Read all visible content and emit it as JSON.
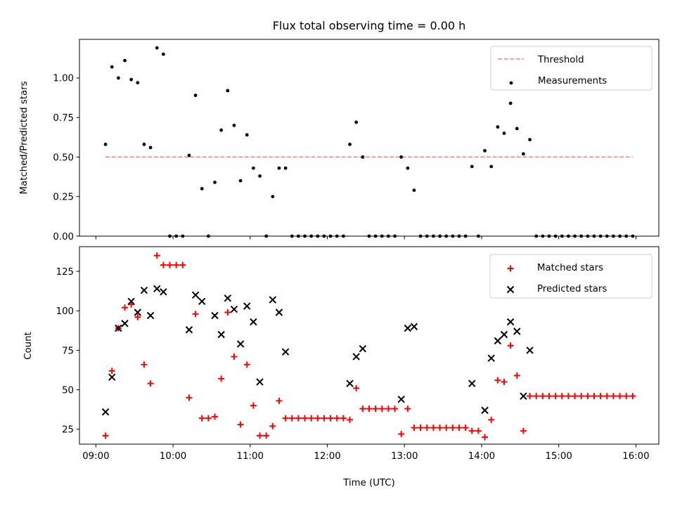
{
  "chart_data": [
    {
      "type": "scatter",
      "title": "Flux total observing time = 0.00 h",
      "xlabel": "",
      "ylabel": "Matched/Predicted stars",
      "ylim": [
        0,
        1.244
      ],
      "xlim_hours": [
        8.787,
        16.297
      ],
      "yticks": [
        "0.00",
        "0.25",
        "0.50",
        "0.75",
        "1.00"
      ],
      "ytick_values": [
        0,
        0.25,
        0.5,
        0.75,
        1.0
      ],
      "legend_position": "top-right",
      "legend": [
        "Threshold",
        "Measurements"
      ],
      "threshold": {
        "name": "Threshold",
        "value": 0.5,
        "color": "#ff7f7f",
        "x_start_index": 0,
        "x_end_index": 82
      },
      "series": [
        {
          "name": "Measurements",
          "color": "#000000",
          "values": [
            0.58,
            1.07,
            1.0,
            1.11,
            0.99,
            0.97,
            0.58,
            0.56,
            1.19,
            1.15,
            0,
            0,
            0,
            0.51,
            0.89,
            0.3,
            0,
            0.34,
            0.67,
            0.92,
            0.7,
            0.35,
            0.64,
            0.43,
            0.38,
            0,
            0.25,
            0.43,
            0.43,
            0,
            0,
            0,
            0,
            0,
            0,
            0,
            0,
            0,
            0.58,
            0.72,
            0.5,
            0,
            0,
            0,
            0,
            0,
            0.5,
            0.43,
            0.29,
            0,
            0,
            0,
            0,
            0,
            0,
            0,
            0,
            0.44,
            0,
            0.54,
            0.44,
            0.69,
            0.65,
            0.84,
            0.68,
            0.52,
            0.61,
            0,
            0,
            0,
            0,
            0,
            0,
            0,
            0,
            0,
            0,
            0,
            0,
            0,
            0,
            0,
            0
          ]
        }
      ]
    },
    {
      "type": "scatter",
      "title": "",
      "xlabel": "Time (UTC)",
      "ylabel": "Count",
      "ylim": [
        15.6,
        140.6
      ],
      "xlim_hours": [
        8.787,
        16.297
      ],
      "yticks": [
        "25",
        "50",
        "75",
        "100",
        "125"
      ],
      "ytick_values": [
        25,
        50,
        75,
        100,
        125
      ],
      "xticks": [
        "09:00",
        "10:00",
        "11:00",
        "12:00",
        "13:00",
        "14:00",
        "15:00",
        "16:00"
      ],
      "xtick_hours": [
        9,
        10,
        11,
        12,
        13,
        14,
        15,
        16
      ],
      "legend_position": "top-right",
      "legend": [
        "Matched stars",
        "Predicted stars"
      ],
      "series": [
        {
          "name": "Matched stars",
          "color": "#ff0000",
          "marker": "+",
          "values": [
            21,
            62,
            89,
            102,
            104,
            96,
            66,
            54,
            135,
            129,
            129,
            129,
            129,
            45,
            98,
            32,
            32,
            33,
            57,
            99,
            71,
            28,
            66,
            40,
            21,
            21,
            27,
            43,
            32,
            32,
            32,
            32,
            32,
            32,
            32,
            32,
            32,
            32,
            31,
            51,
            38,
            38,
            38,
            38,
            38,
            38,
            22,
            38,
            26,
            26,
            26,
            26,
            26,
            26,
            26,
            26,
            26,
            24,
            24,
            20,
            31,
            56,
            55,
            78,
            59,
            24,
            46,
            46,
            46,
            46,
            46,
            46,
            46,
            46,
            46,
            46,
            46,
            46,
            46,
            46,
            46,
            46,
            46
          ]
        },
        {
          "name": "Predicted stars",
          "color": "#000000",
          "marker": "x",
          "values": [
            36,
            58,
            89,
            92,
            106,
            99,
            113,
            97,
            114,
            112,
            null,
            null,
            null,
            88,
            110,
            106,
            null,
            97,
            85,
            108,
            101,
            79,
            103,
            93,
            55,
            null,
            107,
            99,
            74,
            null,
            null,
            null,
            null,
            null,
            null,
            null,
            null,
            null,
            54,
            71,
            76,
            null,
            null,
            null,
            null,
            null,
            44,
            89,
            90,
            null,
            null,
            null,
            null,
            null,
            null,
            null,
            null,
            54,
            null,
            37,
            70,
            81,
            85,
            93,
            87,
            46,
            75,
            null,
            null,
            null,
            null,
            null,
            null,
            null,
            null,
            null,
            null,
            null,
            null,
            null,
            null,
            null,
            null
          ]
        }
      ]
    }
  ],
  "time_axis": {
    "start_hour": 9.125,
    "step_minutes": 5,
    "count": 83
  }
}
